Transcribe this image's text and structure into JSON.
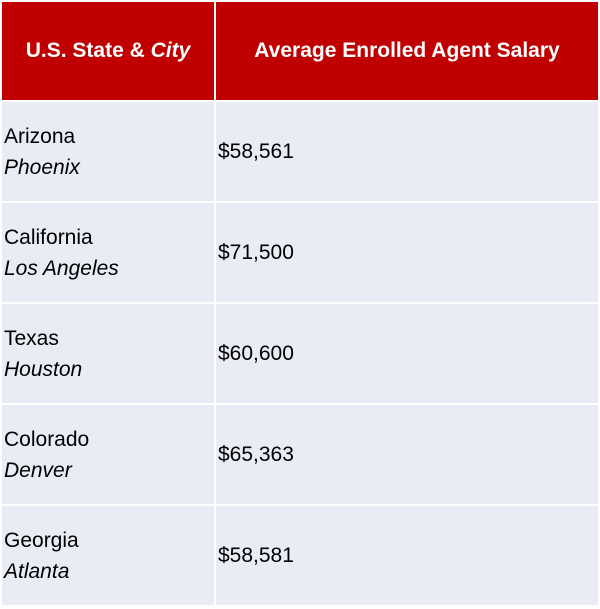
{
  "table": {
    "header": [
      {
        "text": "U.S. State & ",
        "italic": "City"
      },
      {
        "text": "Average Enrolled Agent Salary"
      }
    ],
    "rows": [
      {
        "state": "Arizona",
        "city": "Phoenix",
        "salary": "$58,561"
      },
      {
        "state": "California",
        "city": "Los Angeles",
        "salary": "$71,500"
      },
      {
        "state": "Texas",
        "city": "Houston",
        "salary": "$60,600"
      },
      {
        "state": "Colorado",
        "city": "Denver",
        "salary": "$65,363"
      },
      {
        "state": "Georgia",
        "city": "Atlanta",
        "salary": "$58,581"
      }
    ]
  }
}
